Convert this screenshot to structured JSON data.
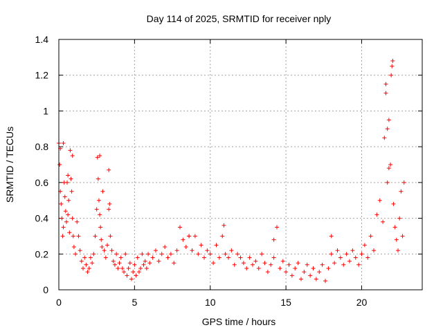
{
  "chart_data": {
    "type": "scatter",
    "title": "Day 114 of 2025, SRMTID for receiver nply",
    "xlabel": "GPS time / hours",
    "ylabel": "SRMTID / TECUs",
    "xlim": [
      0,
      24
    ],
    "ylim": [
      0,
      1.4
    ],
    "xticks": [
      0,
      5,
      10,
      15,
      20
    ],
    "xtick_labels": [
      "0",
      "5",
      "10",
      "15",
      "20"
    ],
    "yticks": [
      0,
      0.2,
      0.4,
      0.6,
      0.8,
      1.0,
      1.2,
      1.4
    ],
    "ytick_labels": [
      "0",
      "0.2",
      "0.4",
      "0.6",
      "0.8",
      "1",
      "1.2",
      "1.4"
    ],
    "grid": true,
    "marker": "plus",
    "color": "#ff0000",
    "series": [
      {
        "name": "SRMTID",
        "x": [
          0.0,
          0.05,
          0.1,
          0.15,
          0.2,
          0.25,
          0.3,
          0.35,
          0.4,
          0.45,
          0.5,
          0.55,
          0.6,
          0.65,
          0.7,
          0.75,
          0.8,
          0.85,
          0.9,
          0.95,
          1.0,
          1.1,
          1.2,
          1.3,
          1.4,
          1.5,
          1.6,
          1.7,
          1.8,
          1.9,
          2.0,
          2.1,
          2.2,
          2.3,
          2.4,
          2.5,
          2.55,
          2.6,
          2.65,
          2.7,
          2.75,
          2.8,
          2.85,
          2.9,
          3.0,
          3.1,
          3.2,
          3.3,
          3.35,
          3.4,
          3.5,
          3.6,
          3.7,
          3.8,
          3.9,
          4.0,
          4.1,
          4.2,
          4.3,
          4.4,
          4.5,
          4.6,
          4.7,
          4.8,
          4.9,
          5.0,
          5.1,
          5.2,
          5.3,
          5.4,
          5.5,
          5.6,
          5.7,
          5.8,
          5.9,
          6.0,
          6.2,
          6.4,
          6.6,
          6.8,
          7.0,
          7.2,
          7.4,
          7.6,
          7.8,
          8.0,
          8.2,
          8.4,
          8.6,
          8.8,
          9.0,
          9.2,
          9.4,
          9.6,
          9.8,
          10.0,
          10.2,
          10.4,
          10.6,
          10.8,
          11.0,
          11.2,
          11.4,
          11.6,
          11.8,
          12.0,
          12.2,
          12.4,
          12.6,
          12.8,
          13.0,
          13.2,
          13.4,
          13.6,
          13.8,
          14.0,
          14.2,
          14.4,
          14.6,
          14.8,
          15.0,
          15.2,
          15.4,
          15.6,
          15.8,
          16.0,
          16.2,
          16.4,
          16.6,
          16.8,
          17.0,
          17.2,
          17.4,
          17.6,
          17.8,
          18.0,
          18.2,
          18.4,
          18.6,
          18.8,
          19.0,
          19.2,
          19.4,
          19.6,
          19.8,
          20.0,
          20.2,
          20.4,
          20.6,
          20.8,
          21.0,
          21.2,
          21.4,
          21.5,
          21.6,
          21.7,
          21.8,
          21.9,
          22.0,
          22.1,
          22.2,
          22.3,
          22.4,
          22.5,
          22.6,
          22.7,
          22.8,
          0.1,
          0.3,
          0.6,
          0.9,
          2.7,
          3.3,
          8.6,
          10.9,
          14.2,
          18.0,
          21.8,
          21.95,
          22.05,
          21.6,
          21.7
        ],
        "y": [
          0.82,
          0.7,
          0.55,
          0.48,
          0.4,
          0.3,
          0.35,
          0.6,
          0.52,
          0.44,
          0.38,
          0.6,
          0.42,
          0.5,
          0.32,
          0.78,
          0.62,
          0.55,
          0.4,
          0.3,
          0.24,
          0.2,
          0.38,
          0.3,
          0.22,
          0.16,
          0.12,
          0.18,
          0.14,
          0.1,
          0.12,
          0.18,
          0.15,
          0.2,
          0.3,
          0.45,
          0.74,
          0.62,
          0.5,
          0.42,
          0.35,
          0.28,
          0.24,
          0.55,
          0.22,
          0.18,
          0.25,
          0.67,
          0.48,
          0.3,
          0.22,
          0.16,
          0.14,
          0.2,
          0.12,
          0.15,
          0.18,
          0.12,
          0.1,
          0.2,
          0.08,
          0.12,
          0.15,
          0.06,
          0.1,
          0.14,
          0.08,
          0.18,
          0.1,
          0.12,
          0.2,
          0.14,
          0.16,
          0.12,
          0.2,
          0.15,
          0.18,
          0.22,
          0.16,
          0.2,
          0.24,
          0.18,
          0.2,
          0.15,
          0.22,
          0.35,
          0.28,
          0.24,
          0.3,
          0.22,
          0.3,
          0.2,
          0.25,
          0.18,
          0.22,
          0.2,
          0.15,
          0.25,
          0.18,
          0.3,
          0.2,
          0.18,
          0.22,
          0.14,
          0.2,
          0.18,
          0.15,
          0.12,
          0.18,
          0.14,
          0.16,
          0.12,
          0.2,
          0.15,
          0.1,
          0.14,
          0.18,
          0.35,
          0.12,
          0.16,
          0.1,
          0.14,
          0.08,
          0.12,
          0.15,
          0.06,
          0.1,
          0.14,
          0.08,
          0.12,
          0.06,
          0.1,
          0.14,
          0.05,
          0.12,
          0.2,
          0.15,
          0.22,
          0.18,
          0.14,
          0.2,
          0.16,
          0.22,
          0.18,
          0.14,
          0.2,
          0.25,
          0.18,
          0.3,
          0.22,
          0.42,
          0.5,
          0.38,
          0.85,
          1.15,
          0.6,
          0.95,
          0.7,
          1.25,
          0.48,
          0.35,
          0.28,
          0.22,
          0.4,
          0.55,
          0.3,
          0.6,
          0.79,
          0.82,
          0.64,
          0.75,
          0.75,
          0.45,
          0.3,
          0.36,
          0.28,
          0.3,
          0.68,
          1.2,
          1.28,
          1.1,
          0.9
        ]
      }
    ]
  }
}
